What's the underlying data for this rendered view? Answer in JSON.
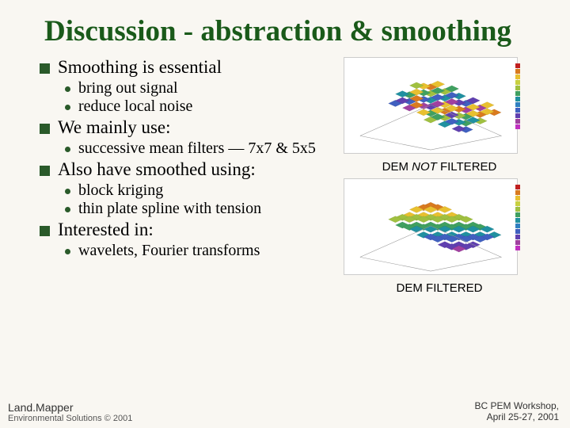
{
  "title": "Discussion - abstraction & smoothing",
  "bullets": {
    "b1": "Smoothing is essential",
    "b1_1": "bring out signal",
    "b1_2": "reduce local noise",
    "b2": "We mainly use:",
    "b2_1": "successive mean filters — 7x7 & 5x5",
    "b3": "Also have smoothed using:",
    "b3_1": "block kriging",
    "b3_2": "thin plate spline with tension",
    "b4": "Interested in:",
    "b4_1": "wavelets, Fourier transforms"
  },
  "captions": {
    "top_pre": "DEM ",
    "top_mid": "NOT",
    "top_post": " FILTERED",
    "bot": "DEM FILTERED"
  },
  "footer": {
    "brand": "Land.Mapper",
    "sub": "Environmental Solutions © 2001",
    "workshop": "BC PEM Workshop,",
    "date": "April 25-27, 2001"
  },
  "surface_colors": {
    "bg": "#ffffff",
    "noisy": [
      [
        "#d97a1f",
        "#e8c030",
        "#a0c040",
        "#40a060",
        "#2090a0",
        "#4060c0",
        "#6040b0",
        "#a040a0",
        "#e8c030",
        "#d97a1f"
      ],
      [
        "#e8c030",
        "#a0c040",
        "#40a060",
        "#2090a0",
        "#4060c0",
        "#6040b0",
        "#a040a0",
        "#e8c030",
        "#d97a1f",
        "#e8c030"
      ],
      [
        "#a0c040",
        "#40a060",
        "#2090a0",
        "#4060c0",
        "#e8c030",
        "#a040a0",
        "#d97a1f",
        "#40a060",
        "#e8c030",
        "#a0c040"
      ],
      [
        "#40a060",
        "#e8c030",
        "#4060c0",
        "#6040b0",
        "#a040a0",
        "#d97a1f",
        "#e8c030",
        "#a0c040",
        "#40a060",
        "#2090a0"
      ],
      [
        "#2090a0",
        "#4060c0",
        "#d97a1f",
        "#a040a0",
        "#40a060",
        "#e8c030",
        "#a0c040",
        "#6040b0",
        "#2090a0",
        "#4060c0"
      ],
      [
        "#4060c0",
        "#6040b0",
        "#a040a0",
        "#d97a1f",
        "#e8c030",
        "#a0c040",
        "#40a060",
        "#2090a0",
        "#4060c0",
        "#6040b0"
      ]
    ],
    "smooth": [
      [
        "#d97a1f",
        "#d97a1f",
        "#e8c030",
        "#e8c030",
        "#a0c040",
        "#a0c040",
        "#40a060",
        "#40a060",
        "#2090a0",
        "#2090a0"
      ],
      [
        "#d97a1f",
        "#e8c030",
        "#e8c030",
        "#a0c040",
        "#a0c040",
        "#40a060",
        "#40a060",
        "#2090a0",
        "#2090a0",
        "#4060c0"
      ],
      [
        "#e8c030",
        "#e8c030",
        "#a0c040",
        "#a0c040",
        "#40a060",
        "#40a060",
        "#2090a0",
        "#2090a0",
        "#4060c0",
        "#4060c0"
      ],
      [
        "#e8c030",
        "#a0c040",
        "#a0c040",
        "#40a060",
        "#40a060",
        "#2090a0",
        "#2090a0",
        "#4060c0",
        "#4060c0",
        "#6040b0"
      ],
      [
        "#a0c040",
        "#a0c040",
        "#40a060",
        "#40a060",
        "#2090a0",
        "#2090a0",
        "#4060c0",
        "#4060c0",
        "#6040b0",
        "#6040b0"
      ],
      [
        "#a0c040",
        "#40a060",
        "#40a060",
        "#2090a0",
        "#2090a0",
        "#4060c0",
        "#4060c0",
        "#6040b0",
        "#6040b0",
        "#a040a0"
      ]
    ],
    "legend": [
      "#c02020",
      "#d97a1f",
      "#e8c030",
      "#c8d040",
      "#a0c040",
      "#40a060",
      "#2090a0",
      "#3080c0",
      "#4060c0",
      "#6040b0",
      "#a040a0",
      "#c030c0"
    ]
  }
}
